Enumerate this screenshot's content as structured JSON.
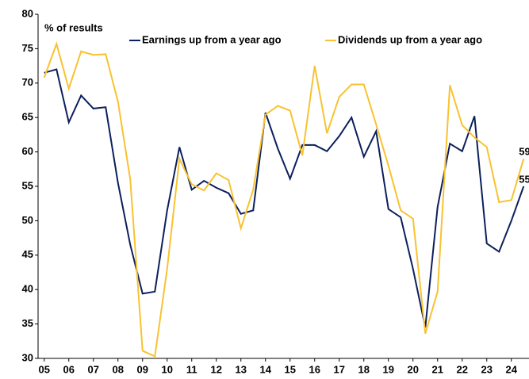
{
  "chart_data": {
    "type": "line",
    "ylabel": "% of results",
    "x": [
      2005,
      2005.5,
      2006,
      2006.5,
      2007,
      2007.5,
      2008,
      2008.5,
      2009,
      2009.5,
      2010,
      2010.5,
      2011,
      2011.5,
      2012,
      2012.5,
      2013,
      2013.5,
      2014,
      2014.5,
      2015,
      2015.5,
      2016,
      2016.5,
      2017,
      2017.5,
      2018,
      2018.5,
      2019,
      2019.5,
      2020,
      2020.5,
      2021,
      2021.5,
      2022,
      2022.5,
      2023,
      2023.5,
      2024,
      2024.5
    ],
    "series": [
      {
        "name": "Earnings up from a year ago",
        "color": "#0b1f5c",
        "values": [
          71.5,
          72,
          64.3,
          68.2,
          66.3,
          66.5,
          55.5,
          46.5,
          39.4,
          39.7,
          51.5,
          60.7,
          54.5,
          55.8,
          54.8,
          54,
          51,
          51.5,
          65.7,
          60.5,
          56.1,
          61,
          61,
          60.1,
          62.3,
          65,
          59.3,
          63,
          51.7,
          50.5,
          43,
          34.5,
          52,
          61.2,
          60.1,
          65.2,
          46.7,
          45.5,
          50,
          55
        ]
      },
      {
        "name": "Dividends up from a year ago",
        "color": "#f8c231",
        "values": [
          70.8,
          75.7,
          69.2,
          74.6,
          74.1,
          74.2,
          67.3,
          56,
          31.1,
          30.3,
          43,
          59,
          55.3,
          54.4,
          56.9,
          55.9,
          48.9,
          54.5,
          65.4,
          66.7,
          66,
          59.5,
          72.5,
          62.7,
          68,
          69.8,
          69.8,
          64,
          58,
          51.5,
          50.3,
          33.6,
          39.7,
          69.7,
          63.9,
          62.1,
          60.7,
          52.7,
          53,
          59
        ]
      }
    ],
    "xlim": [
      2004.75,
      2024.75
    ],
    "xticks": [
      {
        "value": 2005,
        "label": "05"
      },
      {
        "value": 2006,
        "label": "06"
      },
      {
        "value": 2007,
        "label": "07"
      },
      {
        "value": 2008,
        "label": "08"
      },
      {
        "value": 2009,
        "label": "09"
      },
      {
        "value": 2010,
        "label": "10"
      },
      {
        "value": 2011,
        "label": "11"
      },
      {
        "value": 2012,
        "label": "12"
      },
      {
        "value": 2013,
        "label": "13"
      },
      {
        "value": 2014,
        "label": "14"
      },
      {
        "value": 2015,
        "label": "15"
      },
      {
        "value": 2016,
        "label": "16"
      },
      {
        "value": 2017,
        "label": "17"
      },
      {
        "value": 2018,
        "label": "18"
      },
      {
        "value": 2019,
        "label": "19"
      },
      {
        "value": 2020,
        "label": "20"
      },
      {
        "value": 2021,
        "label": "21"
      },
      {
        "value": 2022,
        "label": "22"
      },
      {
        "value": 2023,
        "label": "23"
      },
      {
        "value": 2024,
        "label": "24"
      }
    ],
    "ylim": [
      30,
      80
    ],
    "yticks": [
      30,
      35,
      40,
      45,
      50,
      55,
      60,
      65,
      70,
      75,
      80
    ],
    "grid": false
  }
}
